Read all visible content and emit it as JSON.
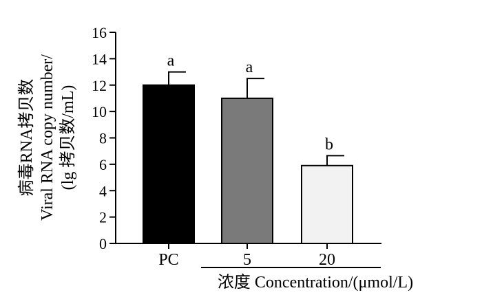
{
  "chart_data": {
    "type": "bar",
    "categories": [
      "PC",
      "5",
      "20"
    ],
    "values": [
      12.0,
      11.0,
      5.9
    ],
    "errors": [
      1.0,
      1.5,
      0.75
    ],
    "significance": [
      "a",
      "a",
      "b"
    ],
    "bar_colors": [
      "#000000",
      "#7a7a7a",
      "#f2f2f2"
    ],
    "ylim": [
      0,
      16
    ],
    "yticks": [
      0,
      2,
      4,
      6,
      8,
      10,
      12,
      14,
      16
    ],
    "ylabel_lines": [
      "病毒RNA拷贝数",
      "Viral RNA copy number/",
      "(lg 拷贝数/mL)"
    ],
    "xlabel": "浓度 Concentration/(μmol/L)",
    "grid": false,
    "legend": "none"
  }
}
